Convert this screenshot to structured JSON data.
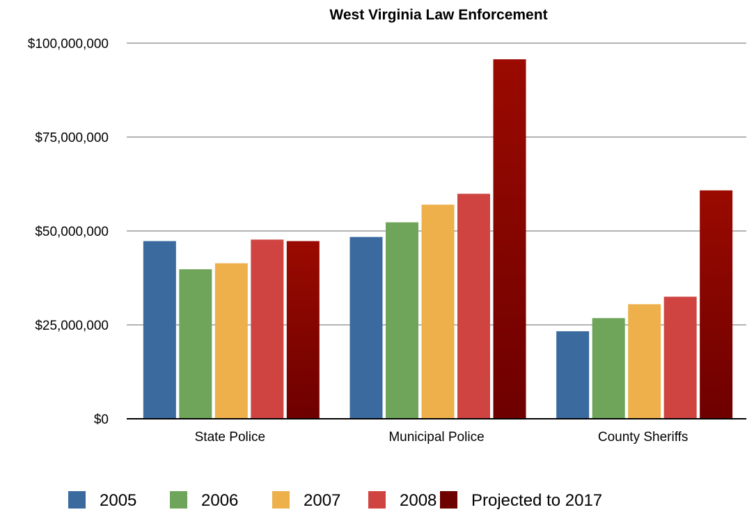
{
  "chart_data": {
    "type": "bar",
    "title": "West Virginia Law Enforcement",
    "categories": [
      "State Police",
      "Municipal Police",
      "County Sheriffs"
    ],
    "series": [
      {
        "name": "2005",
        "values": [
          47300000,
          48400000,
          23300000
        ],
        "color": "#3a6a9e"
      },
      {
        "name": "2006",
        "values": [
          39800000,
          52300000,
          26800000
        ],
        "color": "#6ea55a"
      },
      {
        "name": "2007",
        "values": [
          41400000,
          57000000,
          30500000
        ],
        "color": "#edb04b"
      },
      {
        "name": "2008",
        "values": [
          47700000,
          59900000,
          32500000
        ],
        "color": "#cf4440"
      },
      {
        "name": "Projected to 2017",
        "values": [
          47300000,
          95700000,
          60800000
        ],
        "color": "#8b0000"
      }
    ],
    "ylim": [
      0,
      100000000
    ],
    "yticks": [
      {
        "value": 0,
        "label": "$0"
      },
      {
        "value": 25000000,
        "label": "$25,000,000"
      },
      {
        "value": 50000000,
        "label": "$50,000,000"
      },
      {
        "value": 75000000,
        "label": "$75,000,000"
      },
      {
        "value": 100000000,
        "label": "$100,000,000"
      }
    ],
    "grid": true,
    "legend": "bottom",
    "colors": {
      "gridline": "#b3b3b3",
      "axis": "#000000",
      "projected_gradient_top": "#9a0a00",
      "projected_gradient_bottom": "#6e0000"
    }
  }
}
